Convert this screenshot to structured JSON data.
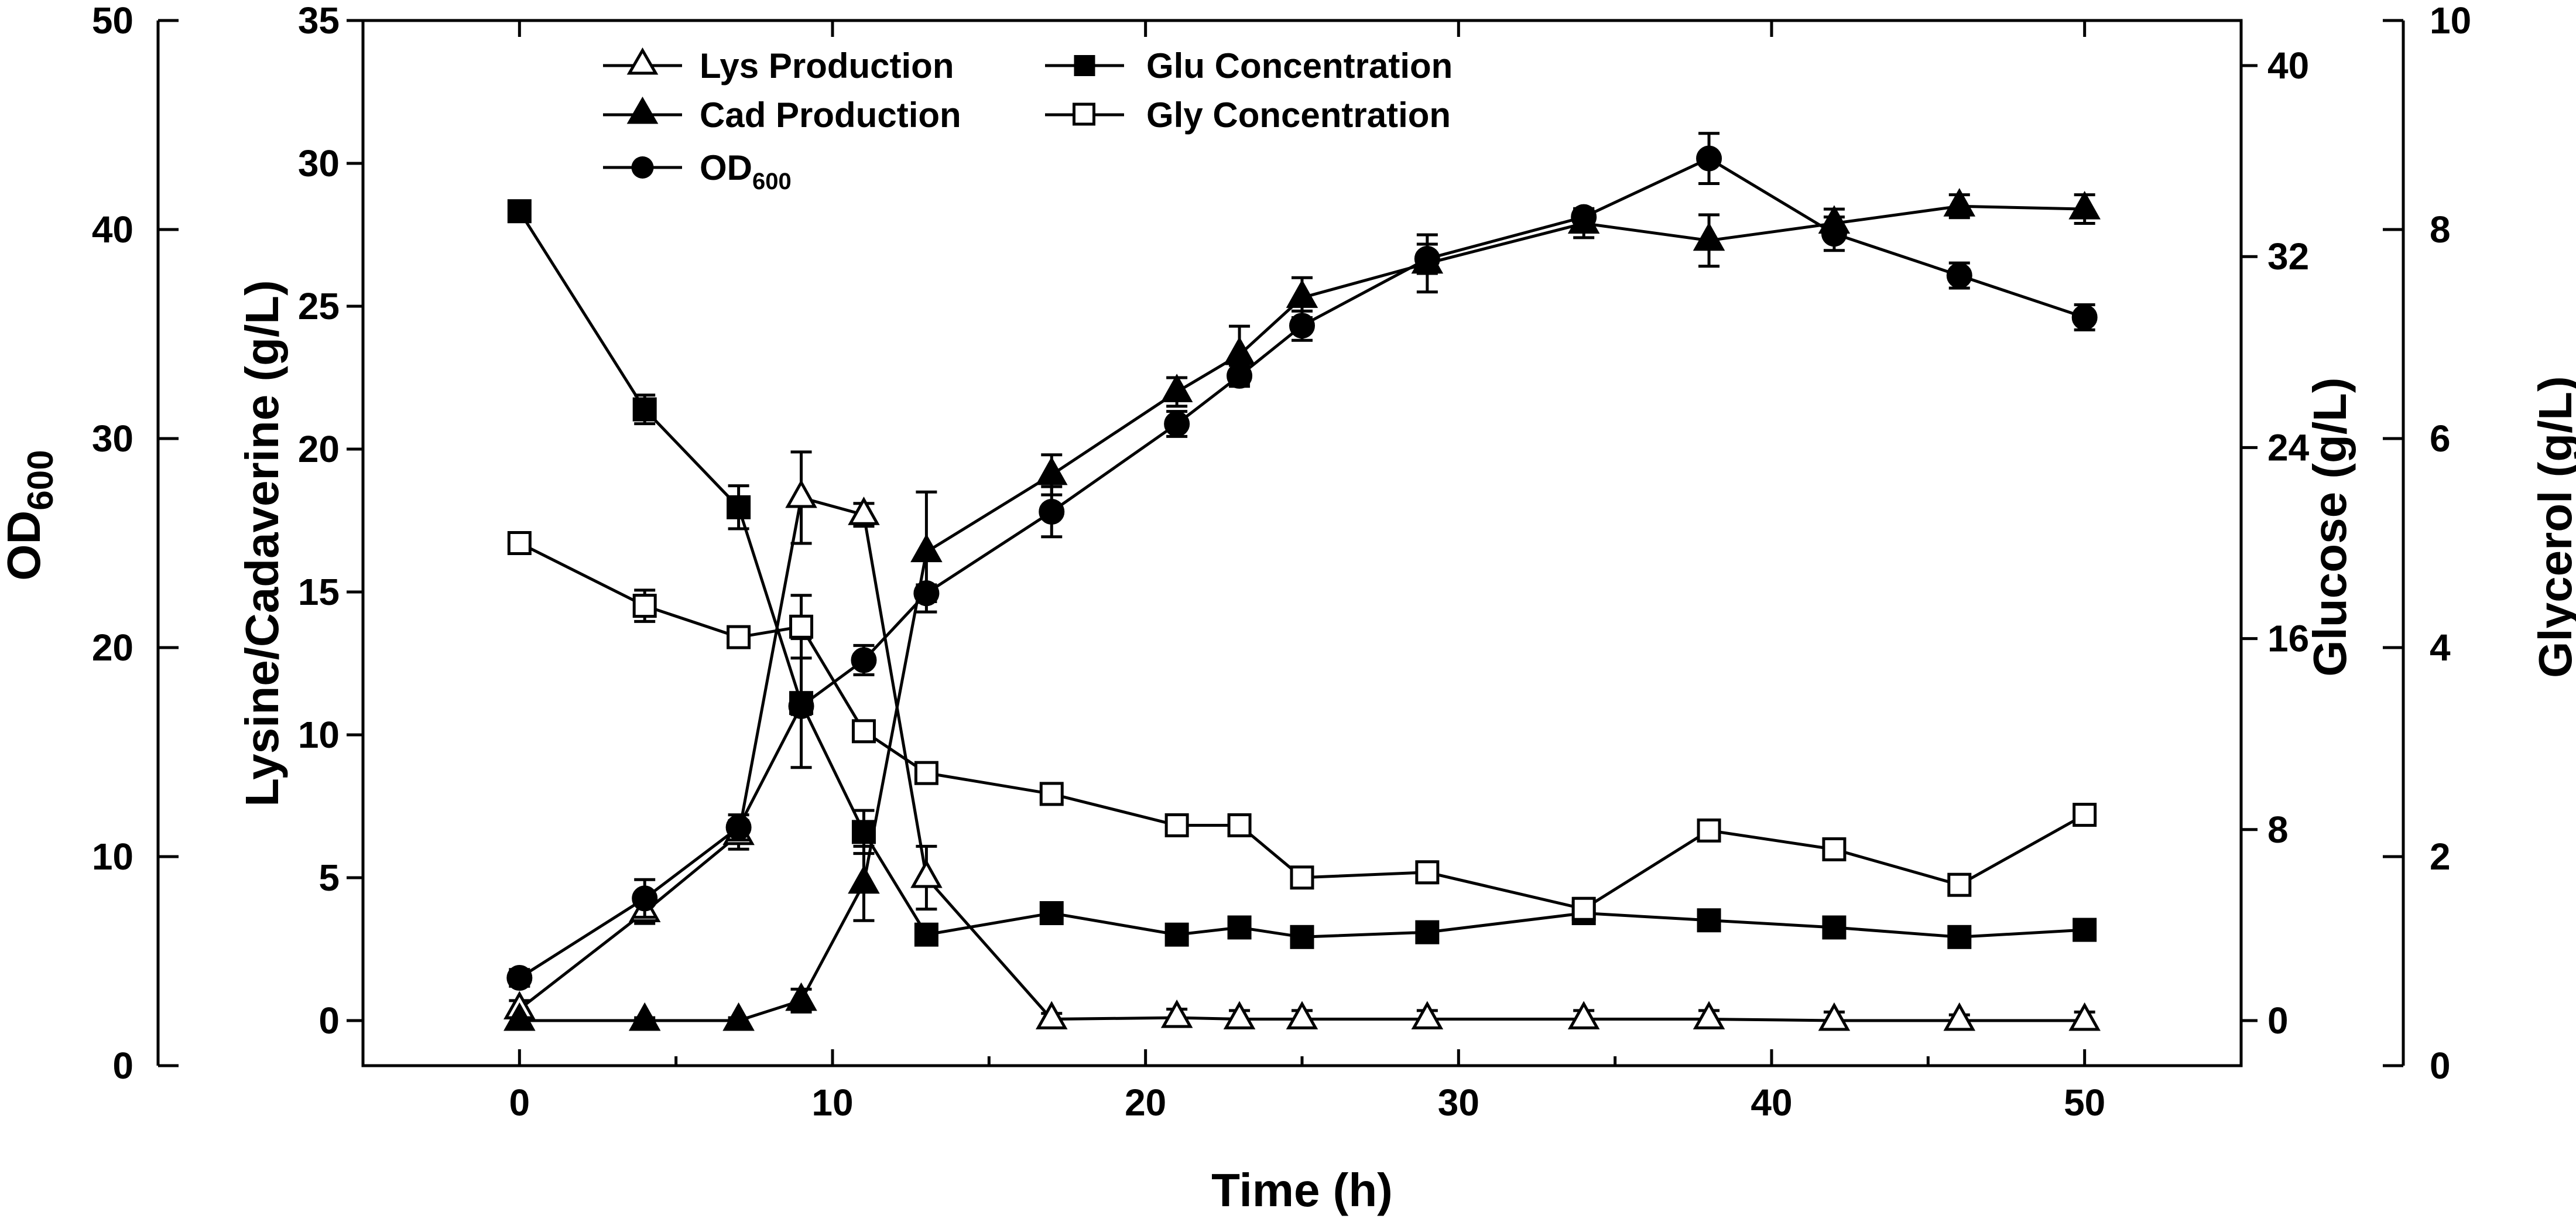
{
  "chart_data": {
    "type": "line",
    "xlabel": "Time (h)",
    "xlim": [
      -5,
      55
    ],
    "xticks": [
      0,
      10,
      20,
      30,
      40,
      50
    ],
    "axes": {
      "lys": {
        "label": "Lysine/Cadaverine (g/L)",
        "min": 0,
        "max": 35,
        "ticks": [
          0,
          5,
          10,
          15,
          20,
          25,
          30,
          35
        ]
      },
      "od": {
        "label_main": "OD",
        "label_sub": "600",
        "min": 0,
        "max": 50,
        "ticks": [
          0,
          10,
          20,
          30,
          40,
          50
        ]
      },
      "glu": {
        "label": "Glucose (g/L)",
        "min": 0,
        "max": 40,
        "ticks": [
          0,
          8,
          16,
          24,
          32,
          40
        ]
      },
      "gly": {
        "label": "Glycerol (g/L)",
        "min": 0,
        "max": 10,
        "ticks": [
          0,
          2,
          4,
          6,
          8,
          10
        ]
      }
    },
    "series": [
      {
        "name": "Lys Production",
        "legend": "Lys Production",
        "axis": "lys",
        "marker": "triangle",
        "filled": false,
        "x": [
          0,
          4,
          7,
          9,
          11,
          13,
          17,
          21,
          23,
          25,
          29,
          34,
          38,
          42,
          46,
          50
        ],
        "values": [
          0.4,
          3.8,
          6.5,
          18.3,
          17.7,
          5.0,
          0.05,
          0.1,
          0.05,
          0.05,
          0.05,
          0.05,
          0.05,
          0.0,
          0.0,
          0.0
        ],
        "errors": [
          0.3,
          0.4,
          0.5,
          1.6,
          0.4,
          1.1,
          0.2,
          0.3,
          0.3,
          0.3,
          0.3,
          0.3,
          0.3,
          0.3,
          0.2,
          0.3
        ]
      },
      {
        "name": "Cad Production",
        "legend": "Cad Production",
        "axis": "lys",
        "marker": "triangle",
        "filled": true,
        "x": [
          0,
          4,
          7,
          9,
          11,
          13,
          17,
          21,
          23,
          25,
          29,
          34,
          38,
          42,
          46,
          50
        ],
        "values": [
          0.0,
          0.0,
          0.0,
          0.7,
          4.8,
          16.4,
          19.1,
          22.0,
          23.3,
          25.3,
          26.5,
          27.9,
          27.3,
          27.9,
          28.5,
          28.4
        ],
        "errors": [
          0.1,
          0.1,
          0.1,
          0.4,
          1.3,
          2.1,
          0.7,
          0.5,
          1.0,
          0.7,
          1.0,
          0.5,
          0.9,
          0.5,
          0.4,
          0.5
        ]
      },
      {
        "name": "OD600",
        "legend_main": "OD",
        "legend_sub": "600",
        "axis": "od",
        "marker": "circle",
        "filled": true,
        "x": [
          0,
          4,
          7,
          9,
          11,
          13,
          17,
          21,
          23,
          25,
          29,
          34,
          38,
          42,
          46,
          50
        ],
        "values": [
          4.2,
          8.0,
          11.4,
          17.2,
          19.4,
          22.6,
          26.5,
          30.7,
          33.0,
          35.4,
          38.6,
          40.6,
          43.4,
          39.8,
          37.8,
          35.8
        ],
        "errors": [
          0.4,
          0.9,
          0.6,
          0.4,
          0.7,
          0.4,
          1.2,
          0.6,
          0.5,
          0.7,
          0.7,
          0.4,
          1.2,
          0.8,
          0.6,
          0.6
        ]
      },
      {
        "name": "Glu Concentration",
        "legend": "Glu Concentration",
        "axis": "glu",
        "marker": "square",
        "filled": true,
        "x": [
          0,
          4,
          7,
          9,
          11,
          13,
          17,
          21,
          23,
          25,
          29,
          34,
          38,
          42,
          46,
          50
        ],
        "values": [
          33.9,
          25.6,
          21.5,
          13.3,
          7.9,
          3.6,
          4.5,
          3.6,
          3.9,
          3.5,
          3.7,
          4.5,
          4.2,
          3.9,
          3.5,
          3.8
        ],
        "errors": [
          0.3,
          0.6,
          0.9,
          2.7,
          0.9,
          0.4,
          0.3,
          0.3,
          0.3,
          0.3,
          0.3,
          0.4,
          0.3,
          0.3,
          0.3,
          0.3
        ]
      },
      {
        "name": "Gly Concentration",
        "legend": "Gly Concentration",
        "axis": "gly",
        "marker": "square",
        "filled": false,
        "x": [
          0,
          4,
          7,
          9,
          11,
          13,
          17,
          21,
          23,
          25,
          29,
          34,
          38,
          42,
          46,
          50
        ],
        "values": [
          5.0,
          4.4,
          4.1,
          4.2,
          3.2,
          2.8,
          2.6,
          2.3,
          2.3,
          1.8,
          1.85,
          1.5,
          2.25,
          2.07,
          1.73,
          2.4
        ],
        "errors": [
          0.05,
          0.15,
          0.07,
          0.3,
          0.06,
          0.05,
          0.05,
          0.08,
          0.08,
          0.08,
          0.1,
          0.1,
          0.08,
          0.07,
          0.07,
          0.05
        ]
      }
    ]
  }
}
